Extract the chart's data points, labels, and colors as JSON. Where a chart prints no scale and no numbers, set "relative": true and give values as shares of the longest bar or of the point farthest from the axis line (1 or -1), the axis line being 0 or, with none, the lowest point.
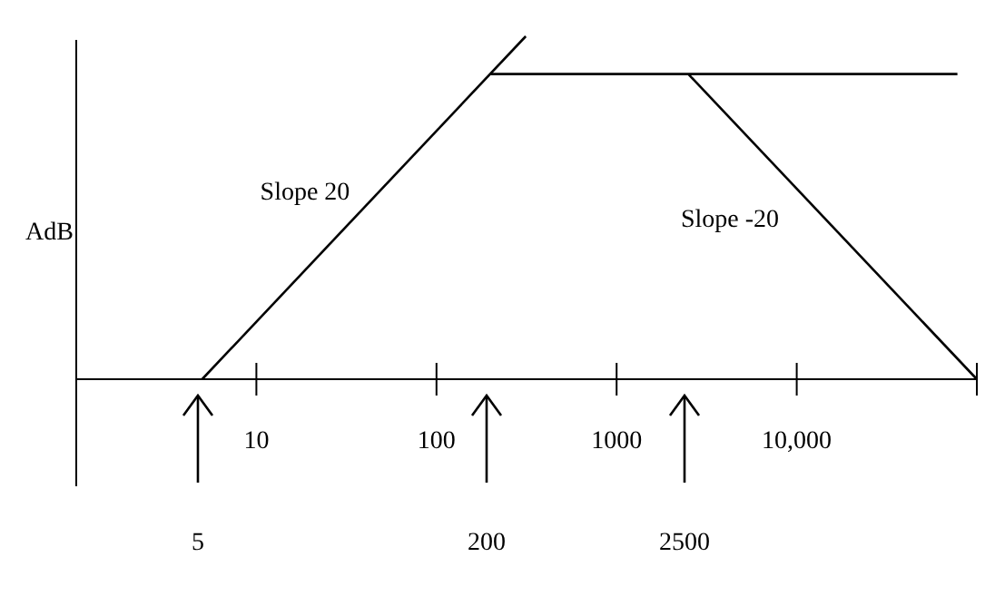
{
  "chart_data": {
    "type": "line",
    "ylabel": "AdB",
    "relative": true,
    "log": "x",
    "grid": false,
    "marker": "none",
    "line_style": "solid",
    "xlim": [
      1,
      100000
    ],
    "xticks": [
      10,
      100,
      1000,
      {
        "value": 10000,
        "label": "10,000"
      },
      {
        "value": 100000,
        "label": null
      }
    ],
    "series": [
      {
        "color": "#000000",
        "x": [
          5,
          313
        ],
        "values": [
          0,
          1
        ]
      },
      {
        "color": "#000000",
        "x": [
          200,
          78000
        ],
        "values": [
          0.89,
          0.89
        ]
      },
      {
        "color": "#000000",
        "x": [
          2500,
          100000
        ],
        "values": [
          0.89,
          0
        ]
      }
    ],
    "annotations": [
      "Slope 20",
      "Slope -20",
      "5",
      "200",
      "2500"
    ]
  }
}
